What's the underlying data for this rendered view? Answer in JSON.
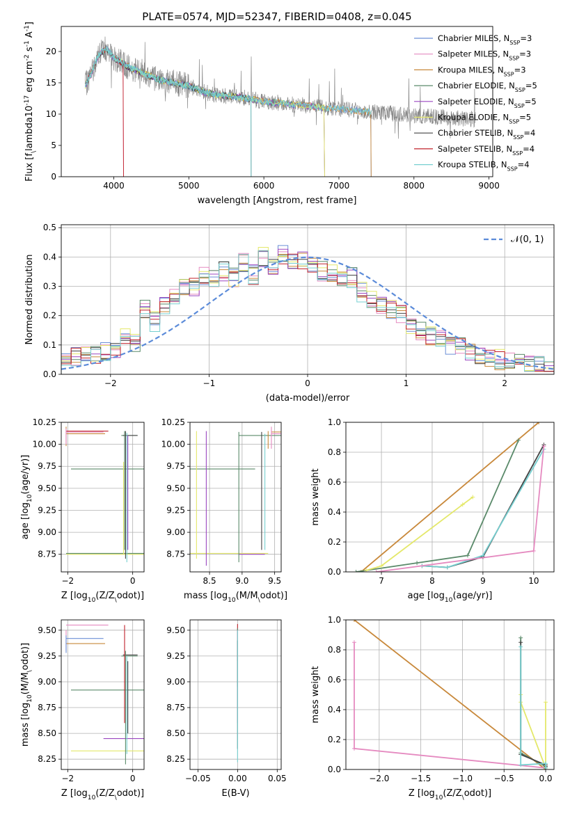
{
  "series_colors": [
    "#6b8fd6",
    "#e58ac0",
    "#c8883a",
    "#5a8a6a",
    "#9b47c0",
    "#e4e86a",
    "#444444",
    "#c0202a",
    "#76cfd0"
  ],
  "chart_data": [
    {
      "id": "spectrum",
      "type": "line",
      "title": "PLATE=0574, MJD=52347, FIBERID=0408, z=0.045",
      "xlabel": "wavelength [Angstrom, rest frame]",
      "ylabel": "Flux [f$_\\lambda$10$^{-17}$ erg cm$^{-2}$ s$^{-1}$ A$^{-1}$]",
      "xlim": [
        3300,
        9050
      ],
      "ylim": [
        0,
        24
      ],
      "xticks": [
        4000,
        5000,
        6000,
        7000,
        8000,
        9000
      ],
      "yticks": [
        0,
        5,
        10,
        15,
        20
      ],
      "grid": false,
      "legend": "top-right",
      "legend_entries": [
        "Chabrier MILES, N$_{SSP}$=3",
        "Salpeter MILES, N$_{SSP}$=3",
        "Kroupa MILES, N$_{SSP}$=3",
        "Chabrier ELODIE, N$_{SSP}$=5",
        "Salpeter ELODIE, N$_{SSP}$=5",
        "Kroupa ELODIE, N$_{SSP}$=5",
        "Chabrier STELIB, N$_{SSP}$=4",
        "Salpeter STELIB, N$_{SSP}$=4",
        "Kroupa STELIB, N$_{SSP}$=4"
      ],
      "data_series": {
        "x": [
          3620,
          3700,
          3800,
          3900,
          4000,
          4200,
          4400,
          4600,
          4800,
          5000,
          5200,
          5400,
          5600,
          5800,
          6000,
          6200,
          6400,
          6600,
          6800,
          7000,
          7200,
          7400,
          7600,
          7800,
          8000,
          8200,
          8400,
          8600,
          8800
        ],
        "y": [
          14.5,
          16.5,
          19.5,
          20.5,
          19.0,
          17.5,
          16.5,
          15.5,
          15.0,
          14.5,
          13.5,
          13.0,
          12.8,
          12.5,
          12.0,
          11.8,
          11.5,
          11.3,
          11.0,
          10.8,
          10.6,
          10.4,
          10.2,
          10.0,
          9.8,
          9.6,
          9.5,
          9.3,
          9.2
        ]
      }
    },
    {
      "id": "residuals",
      "type": "line",
      "xlabel": "(data-model)/error",
      "ylabel": "Normed distribution",
      "xlim": [
        -2.5,
        2.5
      ],
      "ylim": [
        0,
        0.51
      ],
      "xticks": [
        -2,
        -1,
        0,
        1,
        2
      ],
      "xticklabels": [
        "−2",
        "−1",
        "0",
        "1",
        "2"
      ],
      "yticks": [
        0,
        0.1,
        0.2,
        0.3,
        0.4,
        0.5
      ],
      "yticklabels": [
        "0.0",
        "0.1",
        "0.2",
        "0.3",
        "0.4",
        "0.5"
      ],
      "grid": true,
      "legend": "top-right",
      "legend_entries": [
        "$\\mathcal{N}(0,1)$"
      ],
      "histogram_centers": [
        -2.45,
        -2.35,
        -2.25,
        -2.15,
        -2.05,
        -1.95,
        -1.85,
        -1.75,
        -1.65,
        -1.55,
        -1.45,
        -1.35,
        -1.25,
        -1.15,
        -1.05,
        -0.95,
        -0.85,
        -0.75,
        -0.65,
        -0.55,
        -0.45,
        -0.35,
        -0.25,
        -0.15,
        -0.05,
        0.05,
        0.15,
        0.25,
        0.35,
        0.45,
        0.55,
        0.65,
        0.75,
        0.85,
        0.95,
        1.05,
        1.15,
        1.25,
        1.35,
        1.45,
        1.55,
        1.65,
        1.75,
        1.85,
        1.95,
        2.05,
        2.15,
        2.25,
        2.35,
        2.45
      ],
      "histogram_values": [
        0.04,
        0.06,
        0.07,
        0.07,
        0.08,
        0.09,
        0.13,
        0.11,
        0.22,
        0.18,
        0.24,
        0.27,
        0.29,
        0.3,
        0.34,
        0.33,
        0.35,
        0.33,
        0.38,
        0.34,
        0.4,
        0.37,
        0.41,
        0.38,
        0.39,
        0.37,
        0.35,
        0.34,
        0.32,
        0.33,
        0.28,
        0.25,
        0.24,
        0.22,
        0.2,
        0.17,
        0.15,
        0.13,
        0.12,
        0.1,
        0.09,
        0.07,
        0.06,
        0.05,
        0.05,
        0.04,
        0.04,
        0.03,
        0.03,
        0.02
      ]
    },
    {
      "id": "age_vs_Z",
      "type": "scatter",
      "xlabel": "Z [log$_{10}$($Z/Z_\\odot$)]",
      "ylabel": "age  [log$_{10}$($age/yr$)]",
      "xlim": [
        -2.2,
        0.35
      ],
      "ylim": [
        8.55,
        10.25
      ],
      "xticks": [
        -2,
        0
      ],
      "xticklabels": [
        "−2",
        "0"
      ],
      "yticks": [
        8.75,
        9.0,
        9.25,
        9.5,
        9.75,
        10.0,
        10.25
      ],
      "yticklabels": [
        "8.75",
        "9.00",
        "9.25",
        "9.50",
        "9.75",
        "10.00",
        "10.25"
      ],
      "grid": true
    },
    {
      "id": "age_vs_mass",
      "type": "scatter",
      "xlabel": "mass [log$_{10}$($M/M_\\odot$)]",
      "xlim": [
        8.2,
        9.6
      ],
      "ylim": [
        8.55,
        10.25
      ],
      "xticks": [
        8.5,
        9.0,
        9.5
      ],
      "xticklabels": [
        "8.5",
        "9.0",
        "9.5"
      ],
      "yticks": [
        8.75,
        9.0,
        9.25,
        9.5,
        9.75,
        10.0,
        10.25
      ],
      "yticklabels": [
        "8.75",
        "9.00",
        "9.25",
        "9.50",
        "9.75",
        "10.00",
        "10.25"
      ],
      "grid": true
    },
    {
      "id": "mw_vs_age",
      "type": "line",
      "xlabel": "age  [log$_{10}$($age/yr$)]",
      "ylabel": "mass weight",
      "xlim": [
        6.3,
        10.4
      ],
      "ylim": [
        0,
        1
      ],
      "xticks": [
        7,
        8,
        9,
        10
      ],
      "xticklabels": [
        "7",
        "8",
        "9",
        "10"
      ],
      "yticks": [
        0,
        0.2,
        0.4,
        0.6,
        0.8,
        1.0
      ],
      "yticklabels": [
        "0.0",
        "0.2",
        "0.4",
        "0.6",
        "0.8",
        "1.0"
      ],
      "grid": true,
      "series": [
        {
          "x": [
            6.6,
            10.1
          ],
          "y": [
            0.0,
            1.0
          ],
          "color": "#c8883a"
        },
        {
          "x": [
            6.5,
            7.7,
            8.7,
            9.7
          ],
          "y": [
            0.0,
            0.06,
            0.11,
            0.88
          ],
          "color": "#5a8a6a"
        },
        {
          "x": [
            6.7,
            7.0,
            8.6,
            8.8
          ],
          "y": [
            0.01,
            0.04,
            0.45,
            0.5
          ],
          "color": "#e4e86a"
        },
        {
          "x": [
            7.8,
            8.3,
            9.0,
            10.2
          ],
          "y": [
            0.04,
            0.03,
            0.1,
            0.85
          ],
          "color": "#444444"
        },
        {
          "x": [
            7.8,
            8.3,
            9.0,
            10.2
          ],
          "y": [
            0.04,
            0.03,
            0.11,
            0.82
          ],
          "color": "#76cfd0"
        },
        {
          "x": [
            6.9,
            10.0,
            10.2
          ],
          "y": [
            0.0,
            0.14,
            0.84
          ],
          "color": "#e58ac0"
        }
      ]
    },
    {
      "id": "mass_vs_Z",
      "type": "scatter",
      "xlabel": "Z [log$_{10}$($Z/Z_\\odot$)]",
      "ylabel": "mass [log$_{10}$($M/M_\\odot$)]",
      "xlim": [
        -2.2,
        0.35
      ],
      "ylim": [
        8.15,
        9.6
      ],
      "xticks": [
        -2,
        0
      ],
      "xticklabels": [
        "−2",
        "0"
      ],
      "yticks": [
        8.25,
        8.5,
        8.75,
        9.0,
        9.25,
        9.5
      ],
      "yticklabels": [
        "8.25",
        "8.50",
        "8.75",
        "9.00",
        "9.25",
        "9.50"
      ],
      "grid": true
    },
    {
      "id": "mass_vs_EBV",
      "type": "scatter",
      "xlabel": "E(B-V)",
      "xlim": [
        -0.06,
        0.055
      ],
      "ylim": [
        8.15,
        9.6
      ],
      "xticks": [
        -0.05,
        0,
        0.05
      ],
      "xticklabels": [
        "−0.05",
        "0.00",
        "0.05"
      ],
      "yticks": [
        8.25,
        8.5,
        8.75,
        9.0,
        9.25,
        9.5
      ],
      "yticklabels": [
        "8.25",
        "8.50",
        "8.75",
        "9.00",
        "9.25",
        "9.50"
      ],
      "grid": true
    },
    {
      "id": "mw_vs_Z",
      "type": "line",
      "xlabel": "Z [log$_{10}$($Z/Z_\\odot$)]",
      "ylabel": "mass weight",
      "xlim": [
        -2.4,
        0.1
      ],
      "ylim": [
        0,
        1
      ],
      "xticks": [
        -2.0,
        -1.5,
        -1.0,
        -0.5,
        0.0
      ],
      "xticklabels": [
        "−2.0",
        "−1.5",
        "−1.0",
        "−0.5",
        "0.0"
      ],
      "yticks": [
        0,
        0.2,
        0.4,
        0.6,
        0.8,
        1.0
      ],
      "yticklabels": [
        "0.0",
        "0.2",
        "0.4",
        "0.6",
        "0.8",
        "1.0"
      ],
      "grid": true,
      "series": [
        {
          "x": [
            -2.3,
            0.0
          ],
          "y": [
            1.0,
            0.0
          ],
          "color": "#c8883a"
        },
        {
          "x": [
            -2.3,
            -2.3,
            0.0
          ],
          "y": [
            0.85,
            0.14,
            0.01
          ],
          "color": "#e58ac0"
        },
        {
          "x": [
            -0.3,
            -0.3,
            0.0,
            0.0
          ],
          "y": [
            0.88,
            0.11,
            0.02,
            0.0
          ],
          "color": "#5a8a6a"
        },
        {
          "x": [
            -0.3,
            -0.3,
            0.0,
            0.0
          ],
          "y": [
            0.5,
            0.45,
            0.01,
            0.45
          ],
          "color": "#e4e86a"
        },
        {
          "x": [
            -0.3,
            -0.3,
            0.0,
            0.0
          ],
          "y": [
            0.85,
            0.1,
            0.03,
            0.02
          ],
          "color": "#444444"
        },
        {
          "x": [
            -0.3,
            -0.3,
            0.0,
            0.0
          ],
          "y": [
            0.82,
            0.03,
            0.04,
            0.01
          ],
          "color": "#76cfd0"
        }
      ]
    }
  ]
}
